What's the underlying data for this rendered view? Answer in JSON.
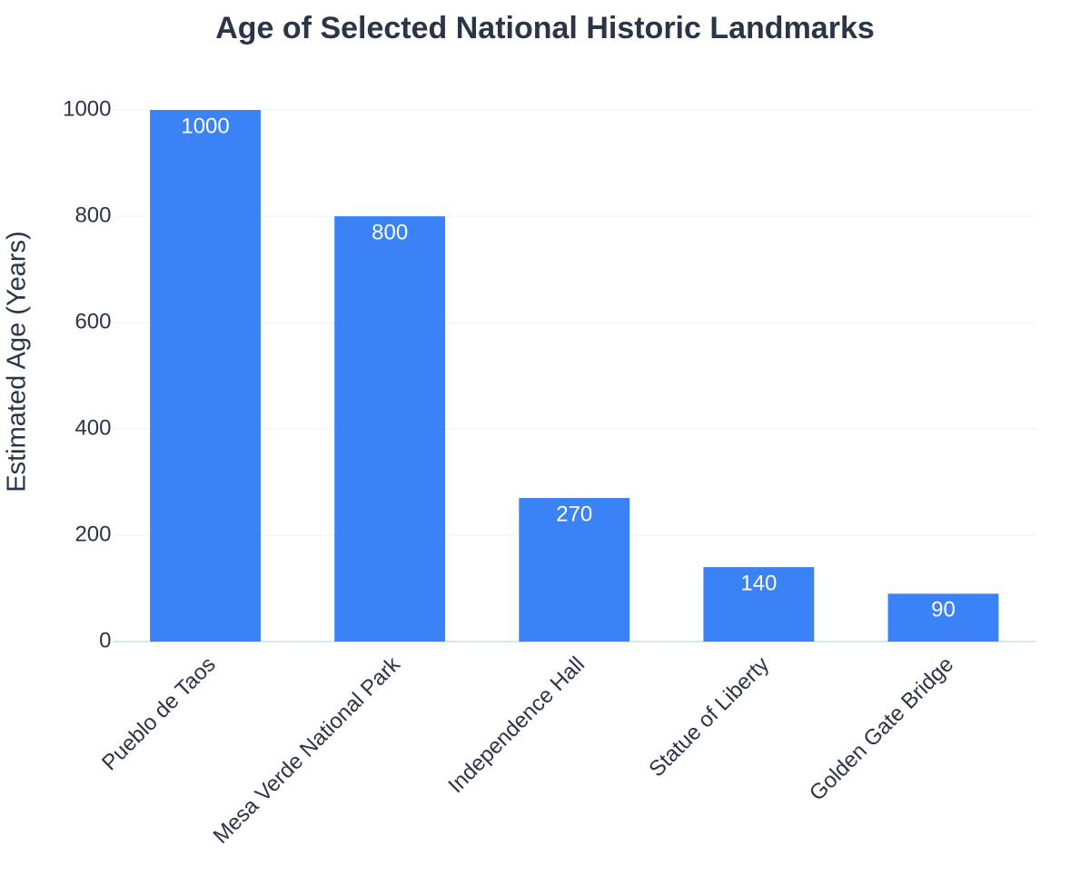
{
  "chart_data": {
    "type": "bar",
    "title": "Age of Selected National Historic Landmarks",
    "y_label": "Estimated Age (Years)",
    "categories": [
      "Pueblo de Taos",
      "Mesa Verde National Park",
      "Independence Hall",
      "Statue of Liberty",
      "Golden Gate Bridge"
    ],
    "values": [
      1000,
      800,
      270,
      140,
      90
    ],
    "color": "#3b82f6",
    "ylim": [
      0,
      1000
    ],
    "yticks": [
      0,
      200,
      400,
      600,
      800,
      1000
    ],
    "grid": true
  }
}
